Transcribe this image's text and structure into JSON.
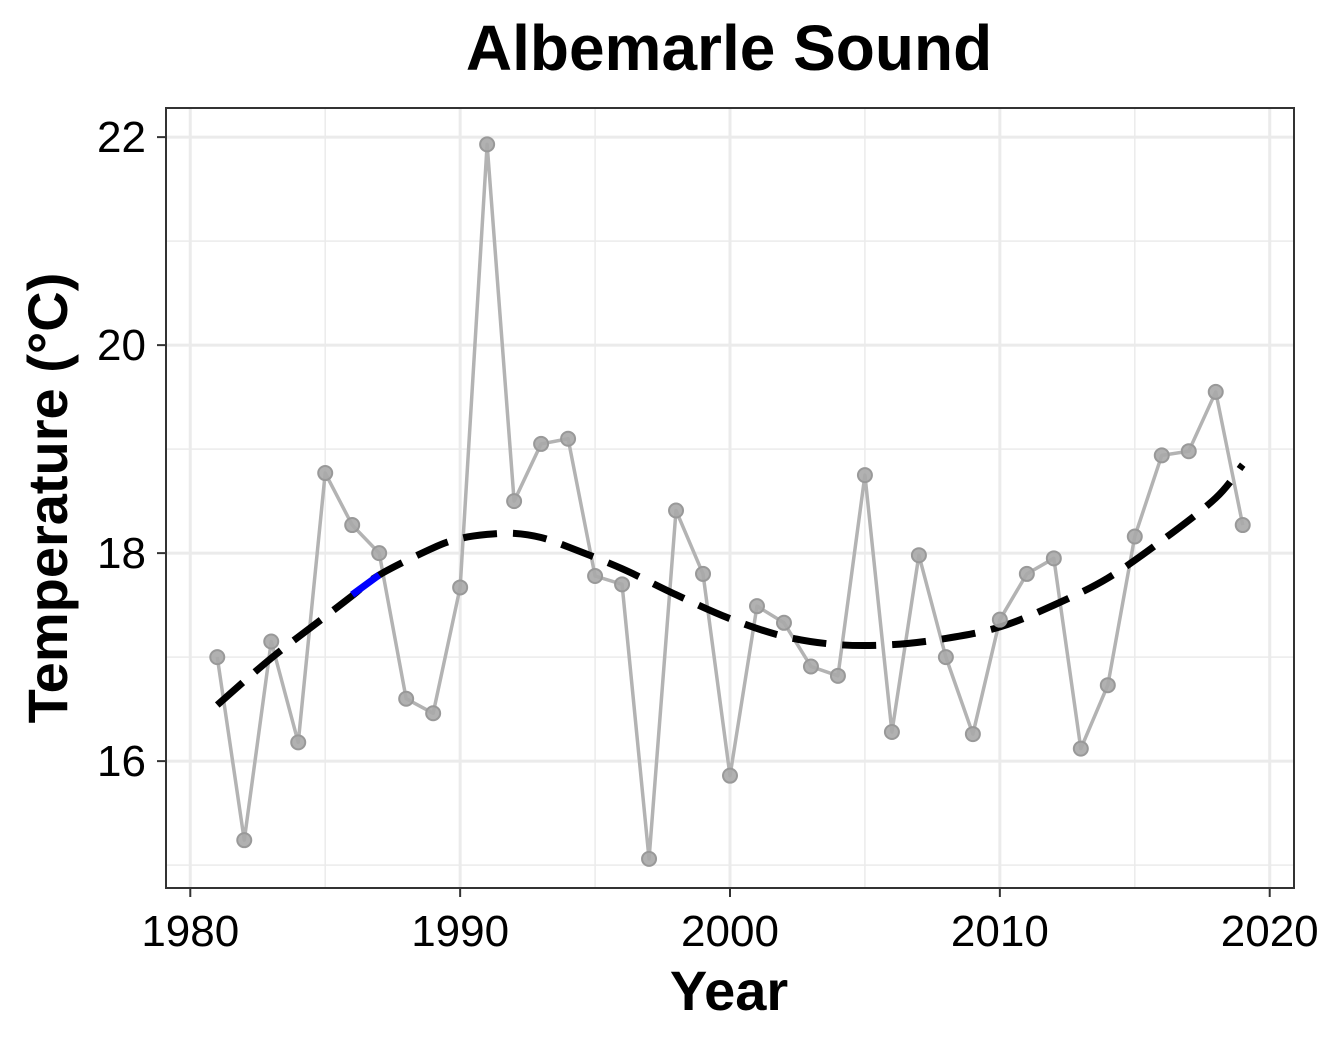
{
  "chart_data": {
    "type": "line",
    "title": "Albemarle Sound",
    "xlabel": "Year",
    "ylabel": "Temperature (°C)",
    "xlim": [
      1979.1,
      2020.9
    ],
    "ylim": [
      14.78,
      22.28
    ],
    "x_ticks": [
      1980,
      1990,
      2000,
      2010,
      2020
    ],
    "x_tick_labels": [
      "1980",
      "1990",
      "2000",
      "2010",
      "2020"
    ],
    "y_ticks": [
      16,
      18,
      20,
      22
    ],
    "y_tick_labels": [
      "16",
      "18",
      "20",
      "22"
    ],
    "grid": true,
    "legend": "none",
    "series": [
      {
        "type": "line+points",
        "color": "#b3b3b3",
        "x": [
          1981,
          1982,
          1983,
          1984,
          1985,
          1986,
          1987,
          1988,
          1989,
          1990,
          1991,
          1992,
          1993,
          1994,
          1995,
          1996,
          1997,
          1998,
          1999,
          2000,
          2001,
          2002,
          2003,
          2004,
          2005,
          2006,
          2007,
          2008,
          2009,
          2010,
          2011,
          2012,
          2013,
          2014,
          2015,
          2016,
          2017,
          2018,
          2019
        ],
        "y": [
          17.0,
          15.24,
          17.15,
          16.18,
          18.77,
          18.27,
          18.0,
          16.6,
          16.46,
          17.67,
          21.93,
          18.5,
          19.05,
          19.1,
          17.78,
          17.7,
          15.06,
          18.41,
          17.8,
          15.86,
          17.49,
          17.33,
          16.91,
          16.82,
          18.75,
          16.28,
          17.98,
          17.0,
          16.26,
          17.36,
          17.8,
          17.95,
          16.12,
          16.73,
          18.16,
          18.94,
          18.98,
          19.55,
          18.27
        ]
      },
      {
        "type": "trend-dashed",
        "color": "#000000",
        "x": [
          1981,
          1983,
          1985,
          1986,
          1987,
          1989,
          1990,
          1991,
          1992,
          1993,
          1994,
          1996,
          1998,
          2000,
          2002,
          2004,
          2006,
          2008,
          2010,
          2012,
          2014,
          2016,
          2018,
          2019
        ],
        "y": [
          16.54,
          16.99,
          17.39,
          17.59,
          17.79,
          18.05,
          18.14,
          18.18,
          18.19,
          18.15,
          18.06,
          17.85,
          17.6,
          17.37,
          17.2,
          17.12,
          17.12,
          17.18,
          17.29,
          17.5,
          17.76,
          18.12,
          18.53,
          18.85
        ]
      },
      {
        "type": "trend-highlight",
        "color": "#0000ff",
        "x": [
          1986,
          1987
        ],
        "y": [
          17.6,
          17.79
        ]
      }
    ]
  }
}
